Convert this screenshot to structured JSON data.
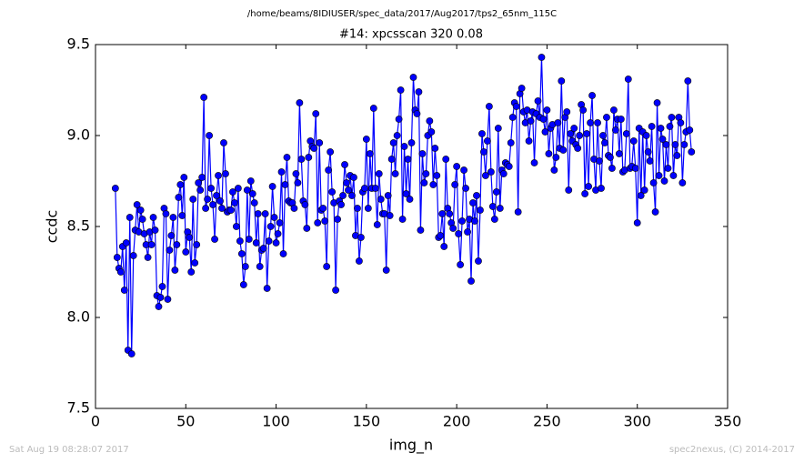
{
  "chart_data": {
    "type": "line",
    "subtitle": "/home/beams/8IDIUSER/spec_data/2017/Aug2017/tps2_65nm_115C",
    "title": "#14: xpcsscan 320 0.08",
    "x_label": "img_n",
    "y_label": "ccdc",
    "color": "#0000ff",
    "xlim": [
      0,
      350
    ],
    "xticks": [
      0,
      50,
      100,
      150,
      200,
      250,
      300,
      350
    ],
    "ylim": [
      7.5,
      9.5
    ],
    "yticks": [
      7.5,
      {
        "value": 8,
        "label": "8.0"
      },
      8.5,
      {
        "value": 9,
        "label": "9.0"
      },
      9.5
    ],
    "x": [
      11,
      12,
      13,
      14,
      15,
      16,
      17,
      18,
      19,
      20,
      21,
      22,
      23,
      24,
      25,
      26,
      27,
      28,
      29,
      30,
      31,
      32,
      33,
      34,
      35,
      36,
      37,
      38,
      39,
      40,
      41,
      42,
      43,
      44,
      45,
      46,
      47,
      48,
      49,
      50,
      51,
      52,
      53,
      54,
      55,
      56,
      57,
      58,
      59,
      60,
      61,
      62,
      63,
      64,
      65,
      66,
      67,
      68,
      69,
      70,
      71,
      72,
      73,
      74,
      75,
      76,
      77,
      78,
      79,
      80,
      81,
      82,
      83,
      84,
      85,
      86,
      87,
      88,
      89,
      90,
      91,
      92,
      93,
      94,
      95,
      96,
      97,
      98,
      99,
      100,
      101,
      102,
      103,
      104,
      105,
      106,
      107,
      108,
      109,
      110,
      111,
      112,
      113,
      114,
      115,
      116,
      117,
      118,
      119,
      120,
      121,
      122,
      123,
      124,
      125,
      126,
      127,
      128,
      129,
      130,
      131,
      132,
      133,
      134,
      135,
      136,
      137,
      138,
      139,
      140,
      141,
      142,
      143,
      144,
      145,
      146,
      147,
      148,
      149,
      150,
      151,
      152,
      153,
      154,
      155,
      156,
      157,
      158,
      159,
      160,
      161,
      162,
      163,
      164,
      165,
      166,
      167,
      168,
      169,
      170,
      171,
      172,
      173,
      174,
      175,
      176,
      177,
      178,
      179,
      180,
      181,
      182,
      183,
      184,
      185,
      186,
      187,
      188,
      189,
      190,
      191,
      192,
      193,
      194,
      195,
      196,
      197,
      198,
      199,
      200,
      201,
      202,
      203,
      204,
      205,
      206,
      207,
      208,
      209,
      210,
      211,
      212,
      213,
      214,
      215,
      216,
      217,
      218,
      219,
      220,
      221,
      222,
      223,
      224,
      225,
      226,
      227,
      228,
      229,
      230,
      231,
      232,
      233,
      234,
      235,
      236,
      237,
      238,
      239,
      240,
      241,
      242,
      243,
      244,
      245,
      246,
      247,
      248,
      249,
      250,
      251,
      252,
      253,
      254,
      255,
      256,
      257,
      258,
      259,
      260,
      261,
      262,
      263,
      264,
      265,
      266,
      267,
      268,
      269,
      270,
      271,
      272,
      273,
      274,
      275,
      276,
      277,
      278,
      279,
      280,
      281,
      282,
      283,
      284,
      285,
      286,
      287,
      288,
      289,
      290,
      291,
      292,
      293,
      294,
      295,
      296,
      297,
      298,
      299,
      300,
      301,
      302,
      303,
      304,
      305,
      306,
      307,
      308,
      309,
      310,
      311,
      312,
      313,
      314,
      315,
      316,
      317,
      318,
      319,
      320,
      321,
      322,
      323,
      324,
      325,
      326,
      327,
      328,
      329,
      330
    ],
    "values": [
      8.71,
      8.33,
      8.27,
      8.25,
      8.39,
      8.15,
      8.41,
      7.82,
      8.55,
      7.8,
      8.34,
      8.48,
      8.62,
      8.47,
      8.59,
      8.54,
      8.46,
      8.4,
      8.33,
      8.47,
      8.4,
      8.55,
      8.48,
      8.12,
      8.06,
      8.11,
      8.17,
      8.6,
      8.57,
      8.1,
      8.37,
      8.45,
      8.55,
      8.26,
      8.4,
      8.66,
      8.73,
      8.56,
      8.77,
      8.36,
      8.47,
      8.44,
      8.25,
      8.65,
      8.3,
      8.4,
      8.74,
      8.7,
      8.77,
      9.21,
      8.6,
      8.65,
      9.0,
      8.71,
      8.62,
      8.43,
      8.67,
      8.78,
      8.64,
      8.6,
      8.96,
      8.79,
      8.58,
      8.59,
      8.59,
      8.69,
      8.63,
      8.5,
      8.71,
      8.42,
      8.35,
      8.18,
      8.28,
      8.7,
      8.43,
      8.75,
      8.68,
      8.63,
      8.41,
      8.57,
      8.28,
      8.37,
      8.38,
      8.57,
      8.16,
      8.42,
      8.5,
      8.72,
      8.55,
      8.41,
      8.46,
      8.52,
      8.8,
      8.35,
      8.73,
      8.88,
      8.64,
      8.63,
      8.63,
      8.6,
      8.79,
      8.74,
      9.18,
      8.87,
      8.64,
      8.62,
      8.49,
      8.88,
      8.97,
      8.94,
      8.93,
      9.12,
      8.52,
      8.96,
      8.59,
      8.6,
      8.53,
      8.28,
      8.81,
      8.91,
      8.69,
      8.63,
      8.15,
      8.54,
      8.64,
      8.62,
      8.67,
      8.84,
      8.74,
      8.7,
      8.78,
      8.67,
      8.77,
      8.45,
      8.6,
      8.31,
      8.44,
      8.69,
      8.71,
      8.98,
      8.6,
      8.9,
      8.71,
      9.15,
      8.71,
      8.51,
      8.79,
      8.65,
      8.57,
      8.57,
      8.26,
      8.67,
      8.56,
      8.87,
      8.96,
      8.79,
      9.0,
      9.09,
      9.25,
      8.54,
      8.94,
      8.68,
      8.87,
      8.65,
      8.96,
      9.32,
      9.14,
      9.12,
      9.24,
      8.48,
      8.9,
      8.74,
      8.79,
      9.0,
      9.08,
      9.02,
      8.73,
      8.93,
      8.78,
      8.44,
      8.45,
      8.57,
      8.39,
      8.87,
      8.6,
      8.57,
      8.52,
      8.49,
      8.73,
      8.83,
      8.46,
      8.29,
      8.53,
      8.81,
      8.71,
      8.47,
      8.54,
      8.2,
      8.63,
      8.53,
      8.67,
      8.31,
      8.59,
      9.01,
      8.91,
      8.78,
      8.97,
      9.16,
      8.8,
      8.61,
      8.54,
      8.69,
      9.04,
      8.6,
      8.81,
      8.79,
      8.85,
      8.84,
      8.83,
      8.96,
      9.1,
      9.18,
      9.16,
      8.58,
      9.23,
      9.26,
      9.13,
      9.07,
      9.14,
      8.97,
      9.08,
      9.13,
      8.85,
      9.12,
      9.19,
      9.1,
      9.43,
      9.09,
      9.02,
      9.14,
      8.9,
      9.04,
      9.06,
      8.81,
      8.88,
      9.07,
      8.93,
      9.3,
      8.92,
      9.1,
      9.13,
      8.7,
      9.01,
      8.97,
      9.04,
      8.95,
      8.93,
      9.0,
      9.17,
      9.14,
      8.68,
      9.01,
      8.72,
      9.07,
      9.22,
      8.87,
      8.7,
      9.07,
      8.86,
      8.71,
      9.0,
      8.96,
      9.1,
      8.89,
      8.88,
      8.82,
      9.14,
      9.03,
      9.09,
      8.9,
      9.09,
      8.8,
      8.81,
      9.01,
      9.31,
      8.82,
      8.83,
      8.97,
      8.82,
      8.52,
      9.04,
      8.67,
      9.02,
      8.7,
      9.0,
      8.91,
      8.86,
      9.05,
      8.74,
      8.58,
      9.18,
      8.78,
      9.04,
      8.98,
      8.75,
      8.95,
      8.82,
      9.05,
      9.1,
      8.78,
      8.95,
      8.89,
      9.1,
      9.07,
      8.74,
      8.95,
      9.02,
      9.3,
      9.03,
      8.91
    ]
  },
  "footer": {
    "left": "Sat Aug 19 08:28:07 2017",
    "right": "spec2nexus, (C) 2014-2017"
  }
}
